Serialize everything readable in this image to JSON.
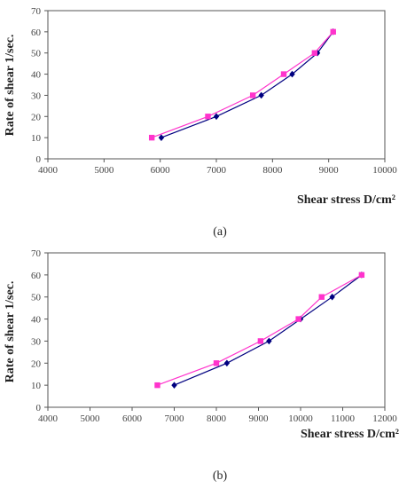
{
  "chart_data": [
    {
      "type": "line",
      "caption": "(a)",
      "xlabel": "Shear stress D/cm²",
      "ylabel": "Rate of shear 1/sec.",
      "xlim": [
        4000,
        10000
      ],
      "ylim": [
        0,
        70
      ],
      "xticks": [
        "4000",
        "5000",
        "6000",
        "7000",
        "8000",
        "9000",
        "10000"
      ],
      "yticks": [
        "0",
        "10",
        "20",
        "30",
        "40",
        "50",
        "60",
        "70"
      ],
      "grid": false,
      "series": [
        {
          "color": "#000080",
          "marker": "diamond",
          "x": [
            6020,
            7000,
            7800,
            8350,
            8800,
            9080
          ],
          "y": [
            10,
            20,
            30,
            40,
            50,
            60
          ]
        },
        {
          "color": "#ff33cc",
          "marker": "square",
          "x": [
            5850,
            6850,
            7650,
            8200,
            8750,
            9080
          ],
          "y": [
            10,
            20,
            30,
            40,
            50,
            60
          ]
        }
      ]
    },
    {
      "type": "line",
      "caption": "(b)",
      "xlabel": "Shear stress D/cm²",
      "ylabel": "Rate of shear 1/sec.",
      "xlim": [
        4000,
        12000
      ],
      "ylim": [
        0,
        70
      ],
      "xticks": [
        "4000",
        "5000",
        "6000",
        "7000",
        "8000",
        "9000",
        "10000",
        "11000",
        "12000"
      ],
      "yticks": [
        "0",
        "10",
        "20",
        "30",
        "40",
        "50",
        "60",
        "70"
      ],
      "grid": false,
      "series": [
        {
          "color": "#000080",
          "marker": "diamond",
          "x": [
            7000,
            8250,
            9250,
            10000,
            10750,
            11450
          ],
          "y": [
            10,
            20,
            30,
            40,
            50,
            60
          ]
        },
        {
          "color": "#ff33cc",
          "marker": "square",
          "x": [
            6600,
            8000,
            9050,
            9950,
            10500,
            11450
          ],
          "y": [
            10,
            20,
            30,
            40,
            50,
            60
          ]
        }
      ]
    }
  ]
}
